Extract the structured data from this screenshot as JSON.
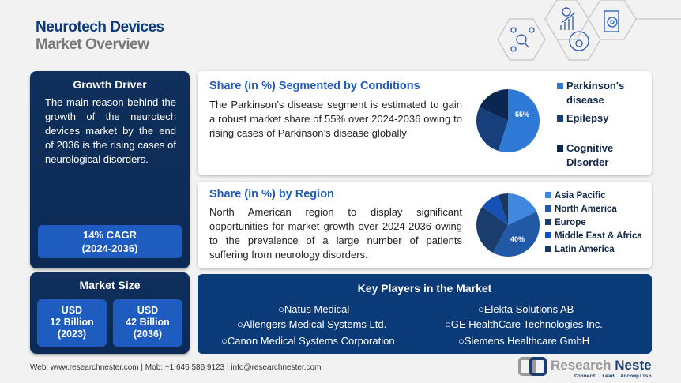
{
  "header": {
    "title": "Neurotech Devices",
    "subtitle": "Market Overview"
  },
  "growth_driver": {
    "title": "Growth Driver",
    "text": "The main reason behind the growth of the neurotech devices market by the end of 2036 is the rising cases of neurological disorders.",
    "cagr": "14% CAGR",
    "cagr_period": "(2024-2036)"
  },
  "market_size": {
    "title": "Market Size",
    "items": [
      {
        "currency": "USD",
        "value": "12 Billion",
        "year": "(2023)"
      },
      {
        "currency": "USD",
        "value": "42 Billion",
        "year": "(2036)"
      }
    ]
  },
  "conditions": {
    "title": "Share (in %) Segmented by Conditions",
    "text": "The Parkinson’s disease segment is estimated to gain a robust market share of 55% over 2024-2036 owing to rising cases of Parkinson’s disease globally",
    "label": "55%"
  },
  "region": {
    "title": "Share (in %) by Region",
    "text": "North American region to display significant opportunities for market growth over 2024-2036 owing to the prevalence of a large number of patients suffering from neurology disorders.",
    "label": "40%"
  },
  "chart_data": [
    {
      "type": "pie",
      "categories": [
        "Parkinson's disease",
        "Epilepsy",
        "Cognitive Disorder"
      ],
      "values": [
        55,
        27,
        18
      ],
      "colors": [
        "#2f7ad6",
        "#173f7c",
        "#0c2652"
      ],
      "legend": "right"
    },
    {
      "type": "pie",
      "categories": [
        "Asia Pacific",
        "North America",
        "Europe",
        "Middle East & Africa",
        "Latin America"
      ],
      "values": [
        18,
        40,
        27,
        10,
        5
      ],
      "colors": [
        "#3f87e0",
        "#2159a6",
        "#1a3d6e",
        "#1652b5",
        "#163862"
      ],
      "legend": "right"
    }
  ],
  "key_players": {
    "title": "Key Players in the Market",
    "items": [
      "Natus Medical",
      "Allengers Medical Systems Ltd.",
      "Canon Medical Systems Corporation",
      "Elekta Solutions AB",
      "GE HealthCare Technologies Inc.",
      "Siemens Healthcare GmbH"
    ]
  },
  "footer": {
    "text": "Web: www.researchnester.com | Mob: +1 646 586 9123 | info@researchnester.com",
    "logo_name": "Research Nester",
    "logo_tagline": "Connect. Lead. Accomplish"
  }
}
